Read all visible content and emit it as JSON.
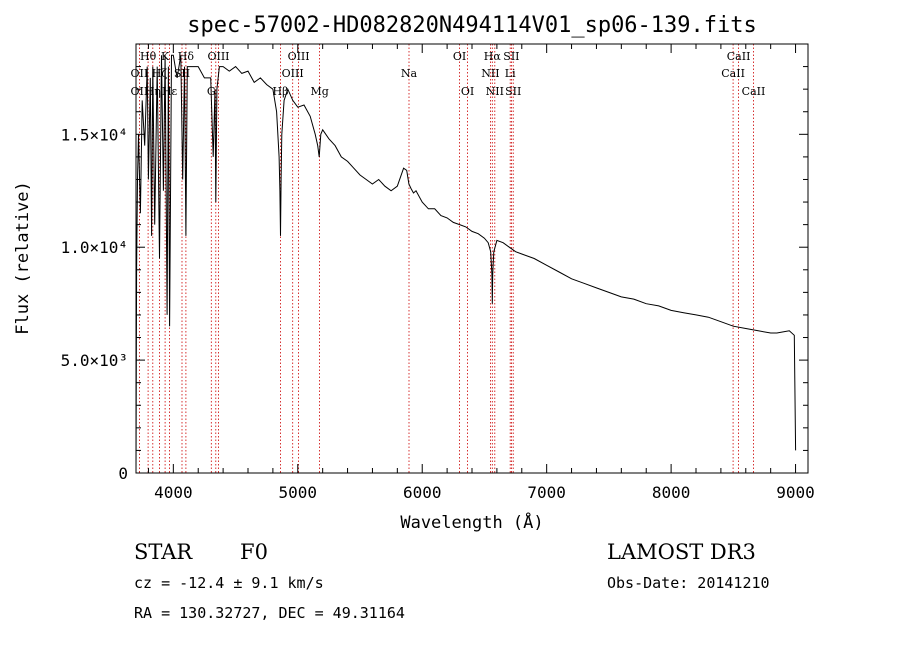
{
  "chart_data": {
    "type": "line",
    "title": "spec-57002-HD082820N494114V01_sp06-139.fits",
    "xlabel": "Wavelength (Å)",
    "ylabel": "Flux (relative)",
    "xlim": [
      3700,
      9100
    ],
    "ylim": [
      0,
      19000
    ],
    "xticks": [
      4000,
      5000,
      6000,
      7000,
      8000,
      9000
    ],
    "xtick_labels": [
      "4000",
      "5000",
      "6000",
      "7000",
      "8000",
      "9000"
    ],
    "yticks": [
      0,
      5000,
      10000,
      15000
    ],
    "ytick_labels": [
      "0",
      "5.0×10³",
      "1.0×10⁴",
      "1.5×10⁴"
    ],
    "series": [
      {
        "name": "flux",
        "x": [
          3700,
          3705,
          3712,
          3720,
          3735,
          3750,
          3770,
          3790,
          3800,
          3815,
          3825,
          3835,
          3850,
          3870,
          3889,
          3905,
          3920,
          3934,
          3950,
          3960,
          3970,
          3985,
          4000,
          4030,
          4060,
          4075,
          4090,
          4101,
          4112,
          4130,
          4160,
          4200,
          4250,
          4300,
          4320,
          4335,
          4341,
          4350,
          4370,
          4400,
          4450,
          4500,
          4550,
          4600,
          4650,
          4700,
          4750,
          4800,
          4830,
          4850,
          4856,
          4861,
          4866,
          4872,
          4890,
          4920,
          4960,
          5000,
          5050,
          5100,
          5140,
          5160,
          5172,
          5185,
          5200,
          5250,
          5300,
          5350,
          5400,
          5450,
          5500,
          5550,
          5600,
          5650,
          5700,
          5750,
          5800,
          5850,
          5875,
          5893,
          5910,
          5930,
          5950,
          6000,
          6050,
          6100,
          6150,
          6200,
          6250,
          6300,
          6350,
          6400,
          6450,
          6500,
          6530,
          6550,
          6560,
          6563,
          6566,
          6575,
          6600,
          6650,
          6700,
          6750,
          6800,
          6900,
          7000,
          7100,
          7200,
          7300,
          7400,
          7500,
          7600,
          7700,
          7800,
          7900,
          8000,
          8100,
          8200,
          8300,
          8400,
          8500,
          8600,
          8700,
          8800,
          8850,
          8900,
          8950,
          8990,
          9000
        ],
        "y": [
          0,
          9000,
          13000,
          15000,
          11500,
          16500,
          14500,
          18000,
          13000,
          17500,
          10500,
          18000,
          11000,
          18000,
          9500,
          18500,
          12500,
          18500,
          7000,
          18000,
          6500,
          18500,
          18500,
          17500,
          18500,
          13000,
          18000,
          10500,
          18000,
          18000,
          18000,
          18000,
          17500,
          17500,
          14000,
          17000,
          12000,
          17000,
          18000,
          18000,
          17800,
          18000,
          17700,
          17800,
          17300,
          17500,
          17200,
          17000,
          16000,
          14000,
          12500,
          10500,
          13000,
          15000,
          16500,
          17000,
          16500,
          16200,
          16300,
          15800,
          15000,
          14500,
          14000,
          15000,
          15200,
          14800,
          14500,
          14000,
          13800,
          13500,
          13200,
          13000,
          12800,
          13000,
          12700,
          12500,
          12700,
          13500,
          13400,
          12800,
          12600,
          12400,
          12500,
          12000,
          11700,
          11700,
          11400,
          11300,
          11100,
          11000,
          10900,
          10700,
          10600,
          10400,
          10200,
          9800,
          8800,
          7500,
          8800,
          9800,
          10300,
          10200,
          10000,
          9800,
          9700,
          9500,
          9200,
          8900,
          8600,
          8400,
          8200,
          8000,
          7800,
          7700,
          7500,
          7400,
          7200,
          7100,
          7000,
          6900,
          6700,
          6500,
          6400,
          6300,
          6200,
          6200,
          6250,
          6300,
          6100,
          1000
        ]
      }
    ],
    "line_markers": [
      {
        "label": "Hθ",
        "x": 3797,
        "row": 1
      },
      {
        "label": "OII",
        "x": 3727,
        "row": 2
      },
      {
        "label": "OII",
        "x": 3727,
        "row": 3
      },
      {
        "label": "Hη",
        "x": 3835,
        "row": 3
      },
      {
        "label": "Hζ",
        "x": 3889,
        "row": 2
      },
      {
        "label": "Hε",
        "x": 3970,
        "row": 3
      },
      {
        "label": "K",
        "x": 3934,
        "row": 1
      },
      {
        "label": "Hδ",
        "x": 4101,
        "row": 1
      },
      {
        "label": "SII",
        "x": 4070,
        "row": 2
      },
      {
        "label": "G",
        "x": 4305,
        "row": 3
      },
      {
        "label": "OIII",
        "x": 4363,
        "row": 1
      },
      {
        "label": "Hβ",
        "x": 4861,
        "row": 3
      },
      {
        "label": "OIII",
        "x": 4959,
        "row": 2
      },
      {
        "label": "OIII",
        "x": 5007,
        "row": 1
      },
      {
        "label": "Mg",
        "x": 5175,
        "row": 3
      },
      {
        "label": "Na",
        "x": 5894,
        "row": 2
      },
      {
        "label": "OI",
        "x": 6300,
        "row": 1
      },
      {
        "label": "OI",
        "x": 6364,
        "row": 3
      },
      {
        "label": "Hα",
        "x": 6563,
        "row": 1
      },
      {
        "label": "NII",
        "x": 6548,
        "row": 2
      },
      {
        "label": "NII",
        "x": 6583,
        "row": 3
      },
      {
        "label": "SII",
        "x": 6717,
        "row": 1
      },
      {
        "label": "Li",
        "x": 6707,
        "row": 2
      },
      {
        "label": "SII",
        "x": 6731,
        "row": 3
      },
      {
        "label": "CaII",
        "x": 8498,
        "row": 2
      },
      {
        "label": "CaII",
        "x": 8542,
        "row": 1
      },
      {
        "label": "CaII",
        "x": 8662,
        "row": 3
      }
    ],
    "line_positions": [
      3727,
      3797,
      3835,
      3889,
      3934,
      3970,
      4070,
      4101,
      4305,
      4341,
      4363,
      4861,
      4959,
      5007,
      5175,
      5894,
      6300,
      6364,
      6548,
      6563,
      6583,
      6707,
      6717,
      6731,
      8498,
      8542,
      8662
    ]
  },
  "info": {
    "class_label": "STAR",
    "subclass": "F0",
    "survey": "LAMOST DR3",
    "cz": "cz = -12.4 ± 9.1 km/s",
    "obs_date": "Obs-Date: 20141210",
    "coords": "RA = 130.32727, DEC =  49.31164"
  },
  "colors": {
    "spectrum": "#000000",
    "marker_line": "#cc0000",
    "axes": "#000000"
  }
}
